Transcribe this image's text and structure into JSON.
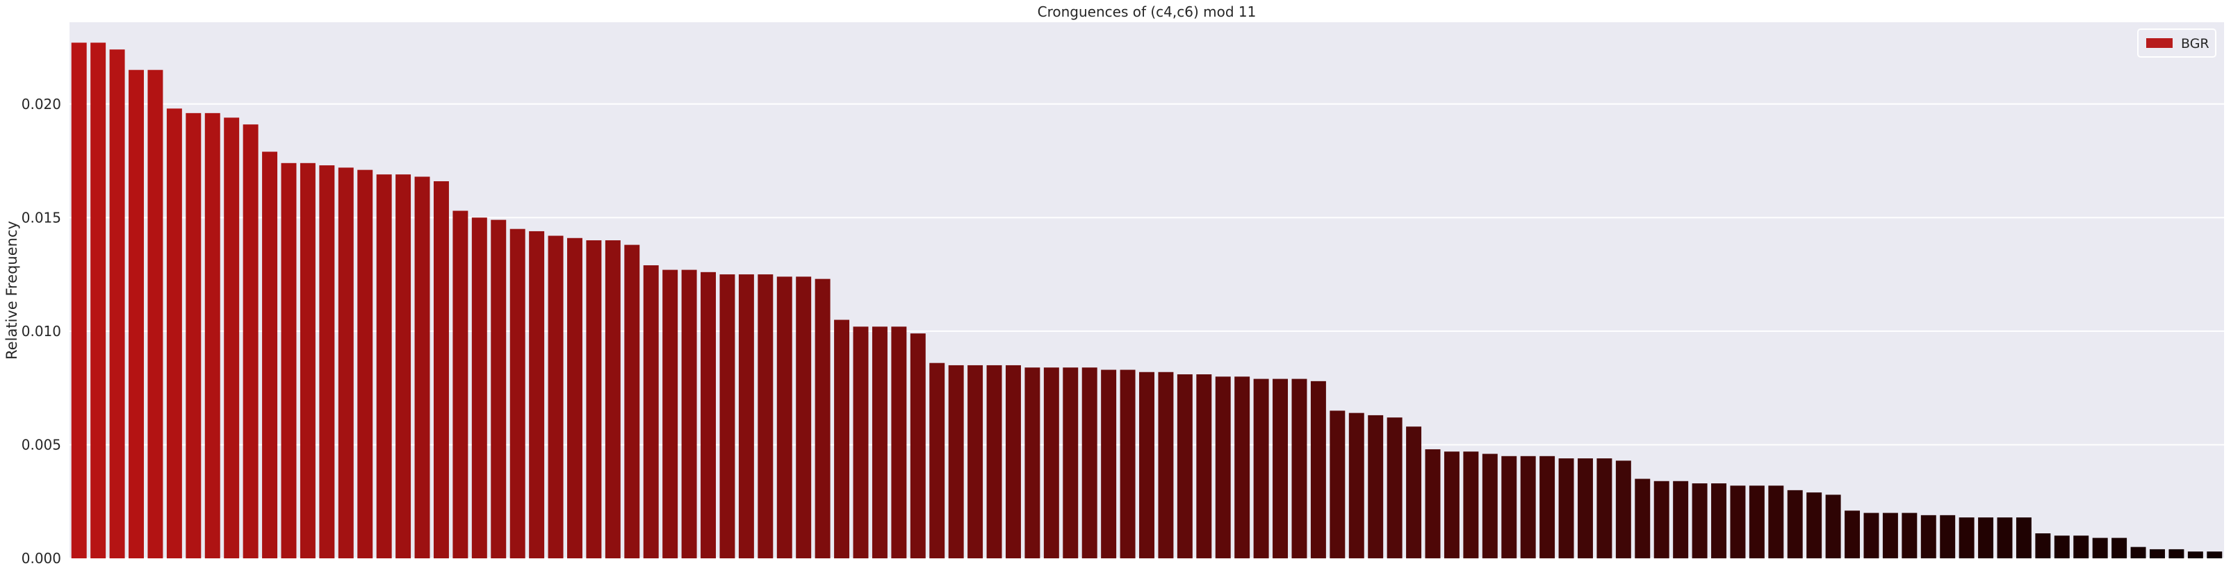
{
  "chart_data": {
    "type": "bar",
    "title": "Cronguences of (c4,c6) mod 11",
    "xlabel": "",
    "ylabel": "Relative Frequency",
    "ylim": [
      0,
      0.0236
    ],
    "yticks": [
      "0.000",
      "0.005",
      "0.010",
      "0.015",
      "0.020"
    ],
    "ytick_values": [
      0.0,
      0.005,
      0.01,
      0.015,
      0.02
    ],
    "grid": true,
    "legend_position": "top-right",
    "series": [
      {
        "name": "BGR",
        "legend_color": "#b71c1c",
        "values": [
          0.0227,
          0.0227,
          0.0224,
          0.0215,
          0.0215,
          0.0198,
          0.0196,
          0.0196,
          0.0194,
          0.0191,
          0.0179,
          0.0174,
          0.0174,
          0.0173,
          0.0172,
          0.0171,
          0.0169,
          0.0169,
          0.0168,
          0.0166,
          0.0153,
          0.015,
          0.0149,
          0.0145,
          0.0144,
          0.0142,
          0.0141,
          0.014,
          0.014,
          0.0138,
          0.0129,
          0.0127,
          0.0127,
          0.0126,
          0.0125,
          0.0125,
          0.0125,
          0.0124,
          0.0124,
          0.0123,
          0.0105,
          0.0102,
          0.0102,
          0.0102,
          0.0099,
          0.0086,
          0.0085,
          0.0085,
          0.0085,
          0.0085,
          0.0084,
          0.0084,
          0.0084,
          0.0084,
          0.0083,
          0.0083,
          0.0082,
          0.0082,
          0.0081,
          0.0081,
          0.008,
          0.008,
          0.0079,
          0.0079,
          0.0079,
          0.0078,
          0.0065,
          0.0064,
          0.0063,
          0.0062,
          0.0058,
          0.0048,
          0.0047,
          0.0047,
          0.0046,
          0.0045,
          0.0045,
          0.0045,
          0.0044,
          0.0044,
          0.0044,
          0.0043,
          0.0035,
          0.0034,
          0.0034,
          0.0033,
          0.0033,
          0.0032,
          0.0032,
          0.0032,
          0.003,
          0.0029,
          0.0028,
          0.0021,
          0.002,
          0.002,
          0.002,
          0.0019,
          0.0019,
          0.0018,
          0.0018,
          0.0018,
          0.0018,
          0.0011,
          0.001,
          0.001,
          0.0009,
          0.0009,
          0.0005,
          0.0004,
          0.0004,
          0.0003,
          0.0003
        ]
      }
    ],
    "colors": {
      "background": "#eaeaf2",
      "grid": "#ffffff",
      "bar_start": "#b81414",
      "bar_end": "#100000",
      "text": "#262626"
    }
  }
}
